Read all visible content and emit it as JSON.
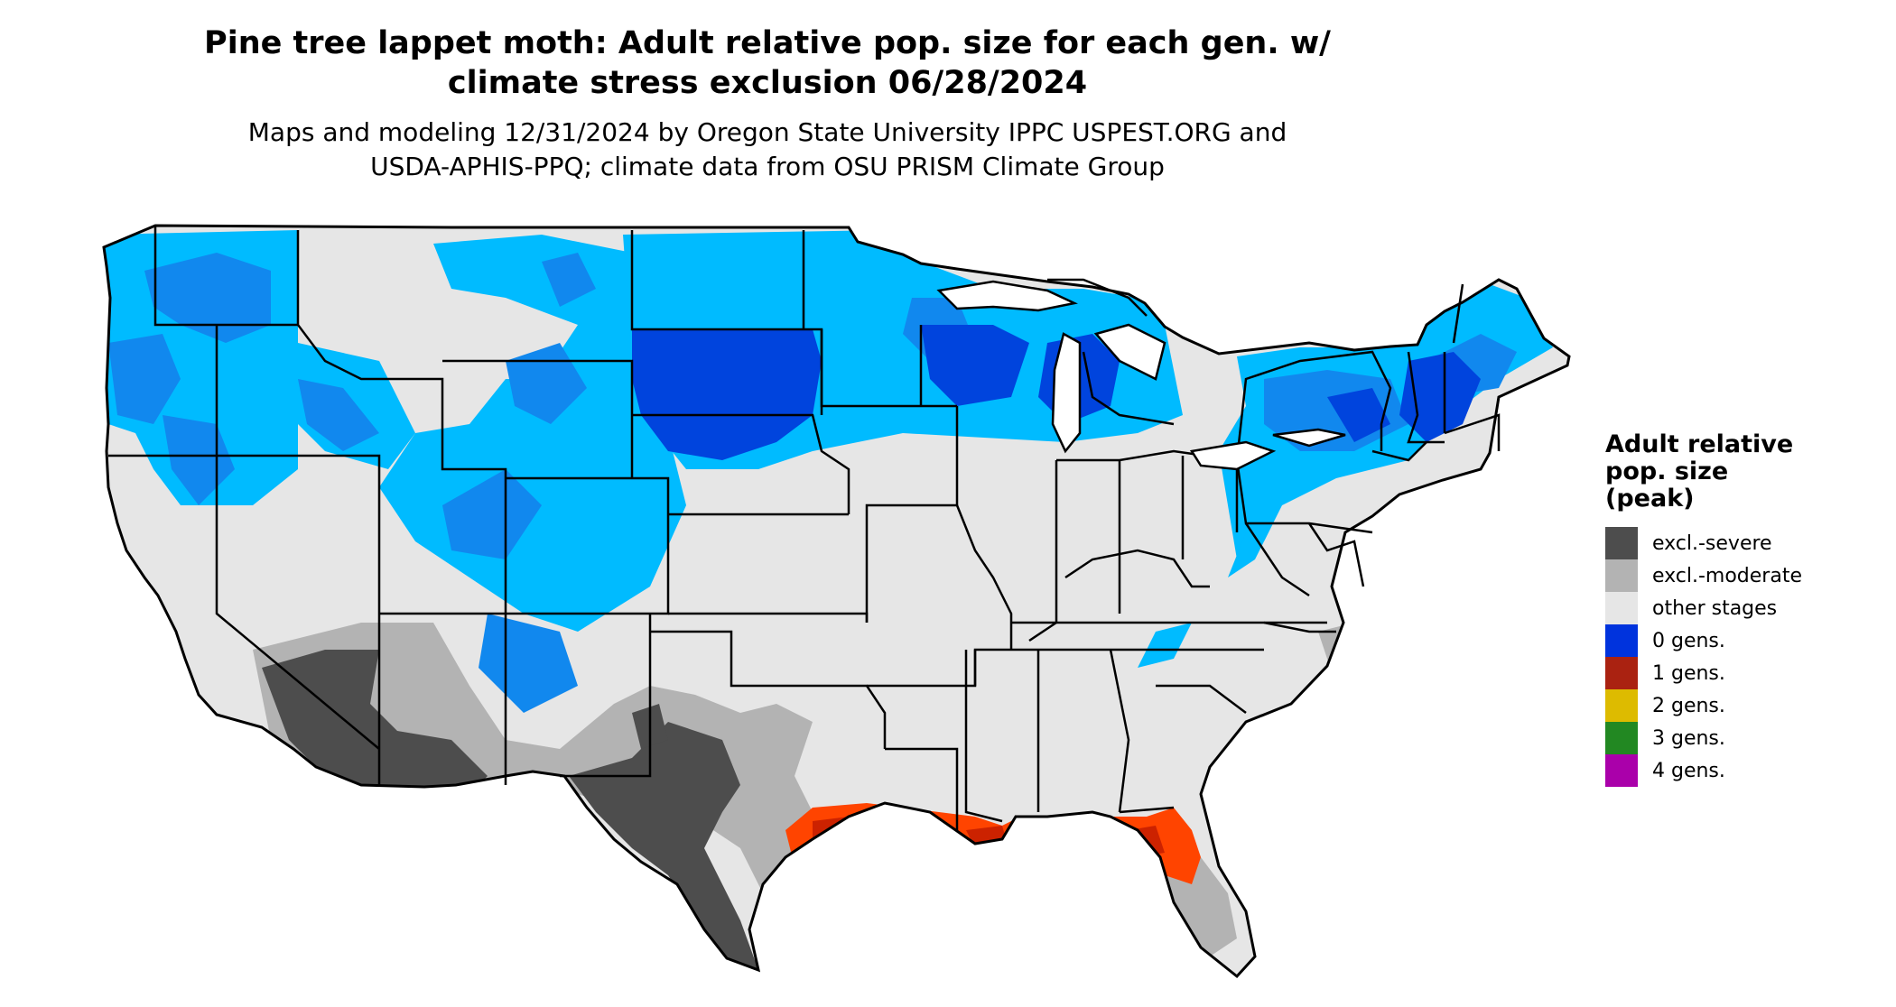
{
  "header": {
    "title_line1": "Pine tree lappet moth: Adult relative pop. size for each gen. w/",
    "title_line2": "climate stress exclusion 06/28/2024",
    "subtitle_line1": "Maps and modeling 12/31/2024 by Oregon State University IPPC USPEST.ORG and",
    "subtitle_line2": "USDA-APHIS-PPQ; climate data from OSU PRISM Climate Group"
  },
  "legend": {
    "title_line1": "Adult relative",
    "title_line2": "pop. size",
    "title_line3": "(peak)",
    "items": [
      {
        "label": "excl.-severe",
        "color": "#4d4d4d"
      },
      {
        "label": "excl.-moderate",
        "color": "#b3b3b3"
      },
      {
        "label": "other stages",
        "color": "#e6e6e6"
      },
      {
        "label": "0 gens.",
        "color": "#0033dd"
      },
      {
        "label": "1 gens.",
        "color": "#aa2211"
      },
      {
        "label": "2 gens.",
        "color": "#ddbb00"
      },
      {
        "label": "3 gens.",
        "color": "#228822"
      },
      {
        "label": "4 gens.",
        "color": "#aa00aa"
      }
    ]
  },
  "colors": {
    "land": "#e6e6e6",
    "light_blue": "#00bbff",
    "mid_blue": "#1188ee",
    "dark_blue": "#0044dd",
    "orange_red": "#ff4400",
    "dark_red": "#cc2200",
    "dark_gray": "#4d4d4d",
    "light_gray": "#b3b3b3",
    "border": "#000000"
  }
}
